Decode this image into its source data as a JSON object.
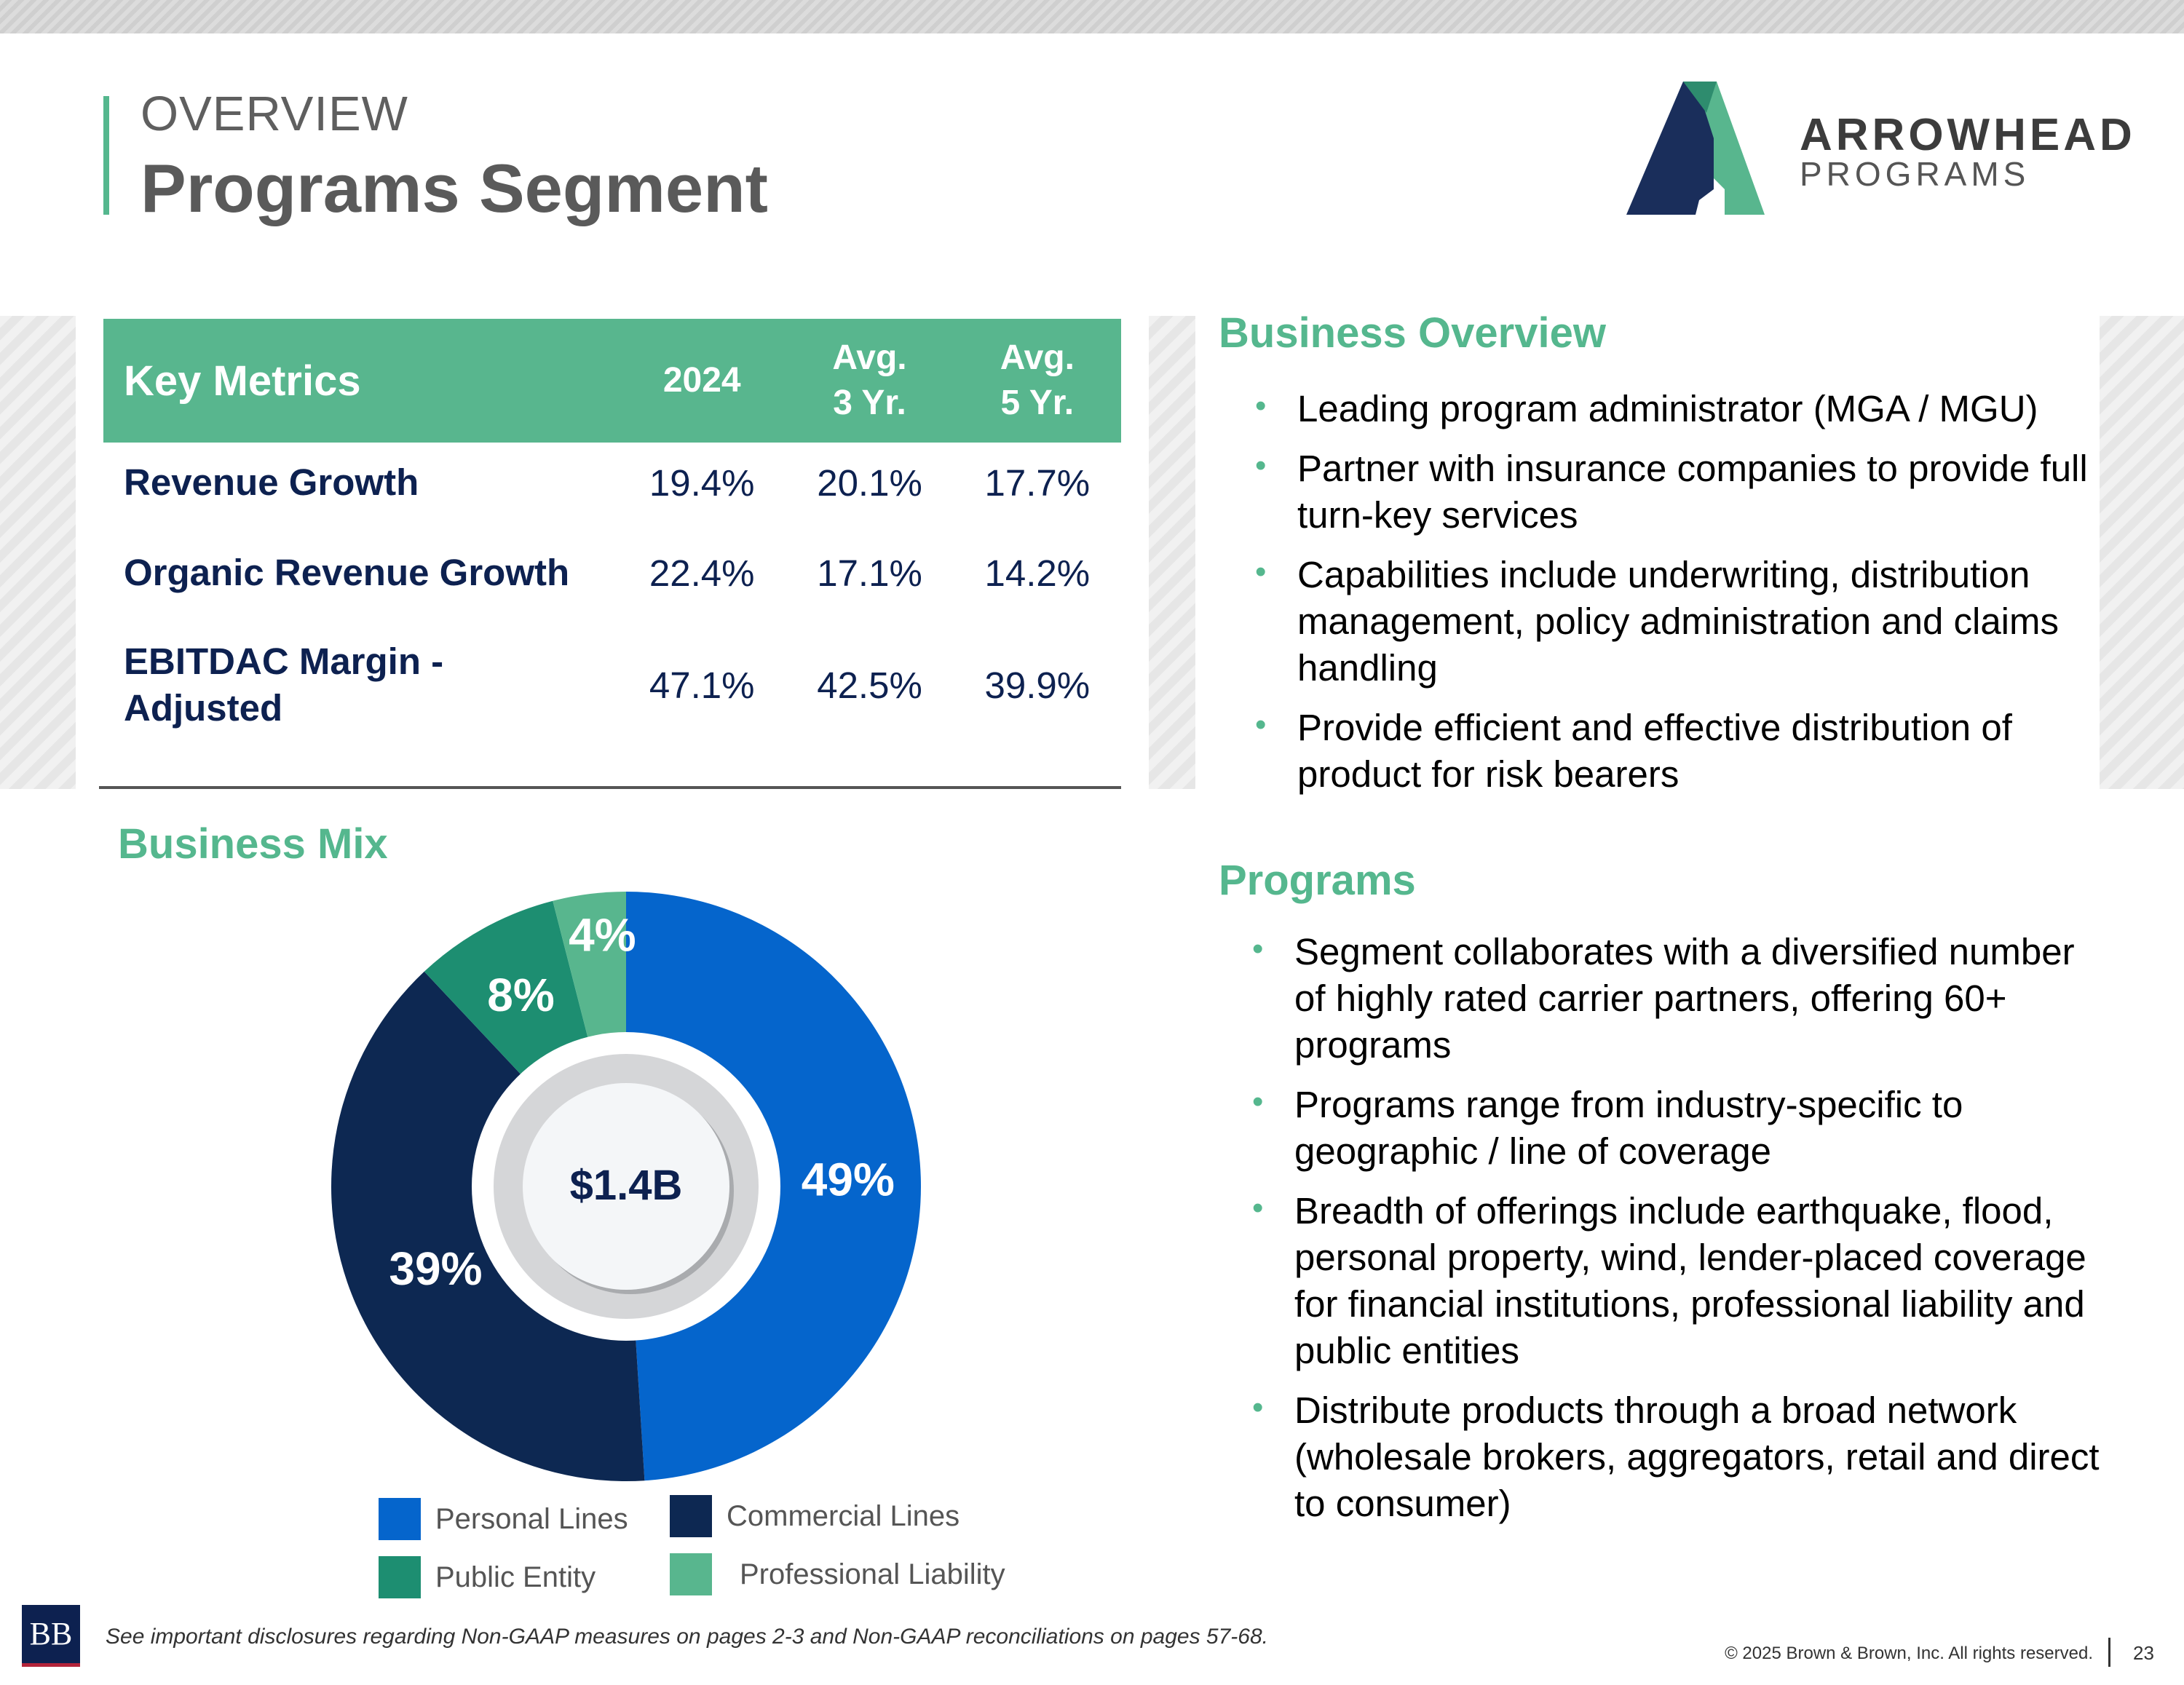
{
  "header": {
    "eyebrow": "OVERVIEW",
    "title": "Programs Segment"
  },
  "logo": {
    "word1": "ARROWHEAD",
    "word2": "PROGRAMS",
    "colors": {
      "navy": "#1a2e5b",
      "green": "#58b68e",
      "teal": "#2e8c6e"
    }
  },
  "metrics": {
    "header": {
      "label": "Key Metrics",
      "col1": "2024",
      "col2_line1": "Avg.",
      "col2_line2": "3 Yr.",
      "col3_line1": "Avg.",
      "col3_line2": "5 Yr."
    },
    "rows": [
      {
        "label_line1": "Revenue Growth",
        "label_line2": "",
        "v2024": "19.4%",
        "avg3": "20.1%",
        "avg5": "17.7%"
      },
      {
        "label_line1": "Organic Revenue Growth",
        "label_line2": "",
        "v2024": "22.4%",
        "avg3": "17.1%",
        "avg5": "14.2%"
      },
      {
        "label_line1": "EBITDAC Margin -",
        "label_line2": "Adjusted",
        "v2024": "47.1%",
        "avg3": "42.5%",
        "avg5": "39.9%"
      }
    ]
  },
  "business_overview": {
    "heading": "Business Overview",
    "bullets": [
      "Leading program administrator (MGA / MGU)",
      "Partner with insurance companies to provide full turn-key services",
      "Capabilities include underwriting, distribution management, policy administration and claims handling",
      "Provide efficient and effective distribution of product for risk bearers"
    ]
  },
  "programs": {
    "heading": "Programs",
    "bullets": [
      "Segment collaborates with a diversified number of highly rated carrier partners, offering 60+ programs",
      "Programs range from industry-specific to geographic / line of coverage",
      "Breadth of offerings include earthquake, flood, personal property, wind, lender-placed coverage for financial institutions, professional liability and public entities",
      "Distribute products through a broad network (wholesale brokers, aggregators, retail and direct to consumer)"
    ]
  },
  "business_mix": {
    "heading": "Business Mix",
    "center_label": "$1.4B"
  },
  "chart_data": {
    "type": "pie",
    "title": "Business Mix",
    "center_label": "$1.4B",
    "categories": [
      "Personal Lines",
      "Commercial Lines",
      "Public Entity",
      "Professional Liability"
    ],
    "values": [
      49,
      39,
      8,
      4
    ],
    "labels": [
      "49%",
      "39%",
      "8%",
      "4%"
    ],
    "colors": [
      "#0565cc",
      "#0d2852",
      "#1d8e71",
      "#58b68e"
    ],
    "legend": [
      "Personal Lines",
      "Commercial Lines",
      "Public Entity",
      "Professional Liability"
    ],
    "legend_position": "bottom"
  },
  "footer": {
    "disclosure": "See important disclosures regarding Non-GAAP measures on pages 2-3 and Non-GAAP reconciliations on pages 57-68.",
    "logo_text": "BB",
    "copyright": "© 2025 Brown & Brown, Inc. All rights reserved.",
    "page_number": "23"
  }
}
